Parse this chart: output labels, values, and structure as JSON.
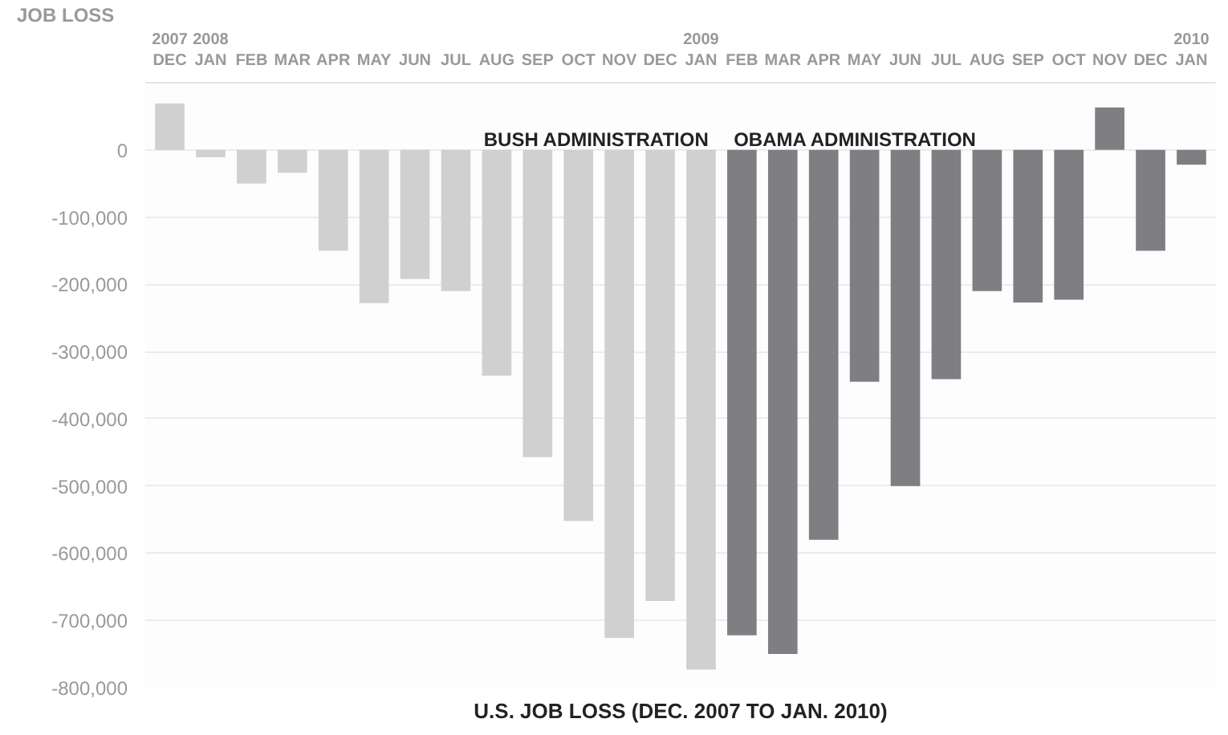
{
  "chart_data": {
    "type": "bar",
    "title": "U.S. JOB LOSS (DEC. 2007 TO JAN. 2010)",
    "ylabel": "JOB LOSS",
    "categories": [
      "2007\nDEC",
      "2008\nJAN",
      "FEB",
      "MAR",
      "APR",
      "MAY",
      "JUN",
      "JUL",
      "AUG",
      "SEP",
      "OCT",
      "NOV",
      "DEC",
      "2009\nJAN",
      "FEB",
      "MAR",
      "APR",
      "MAY",
      "JUN",
      "JUL",
      "AUG",
      "SEP",
      "OCT",
      "NOV",
      "DEC",
      "2010\nJAN"
    ],
    "series": [
      {
        "name": "BUSH ADMINISTRATION",
        "color": "#d0d0d0",
        "values": [
          69000,
          -11000,
          -50000,
          -34000,
          -150000,
          -228000,
          -192000,
          -210000,
          -336000,
          -457000,
          -552000,
          -726000,
          -671000,
          -773000,
          null,
          null,
          null,
          null,
          null,
          null,
          null,
          null,
          null,
          null,
          null,
          null
        ]
      },
      {
        "name": "OBAMA ADMINISTRATION",
        "color": "#7f7f83",
        "values": [
          null,
          null,
          null,
          null,
          null,
          null,
          null,
          null,
          null,
          null,
          null,
          null,
          null,
          null,
          -722000,
          -750000,
          -580000,
          -345000,
          -500000,
          -341000,
          -210000,
          -227000,
          -223000,
          63000,
          -150000,
          -22000
        ]
      }
    ],
    "ylim": [
      -800000,
      100000
    ],
    "yticks": [
      0,
      {
        "value": -100000,
        "label": "-100,000"
      },
      {
        "value": -200000,
        "label": "-200,000"
      },
      {
        "value": -300000,
        "label": "-300,000"
      },
      {
        "value": -400000,
        "label": "-400,000"
      },
      {
        "value": -500000,
        "label": "-500,000"
      },
      {
        "value": -600000,
        "label": "-600,000"
      },
      {
        "value": -700000,
        "label": "-700,000"
      },
      {
        "value": -800000,
        "label": "-800,000"
      }
    ],
    "grid": "y"
  }
}
